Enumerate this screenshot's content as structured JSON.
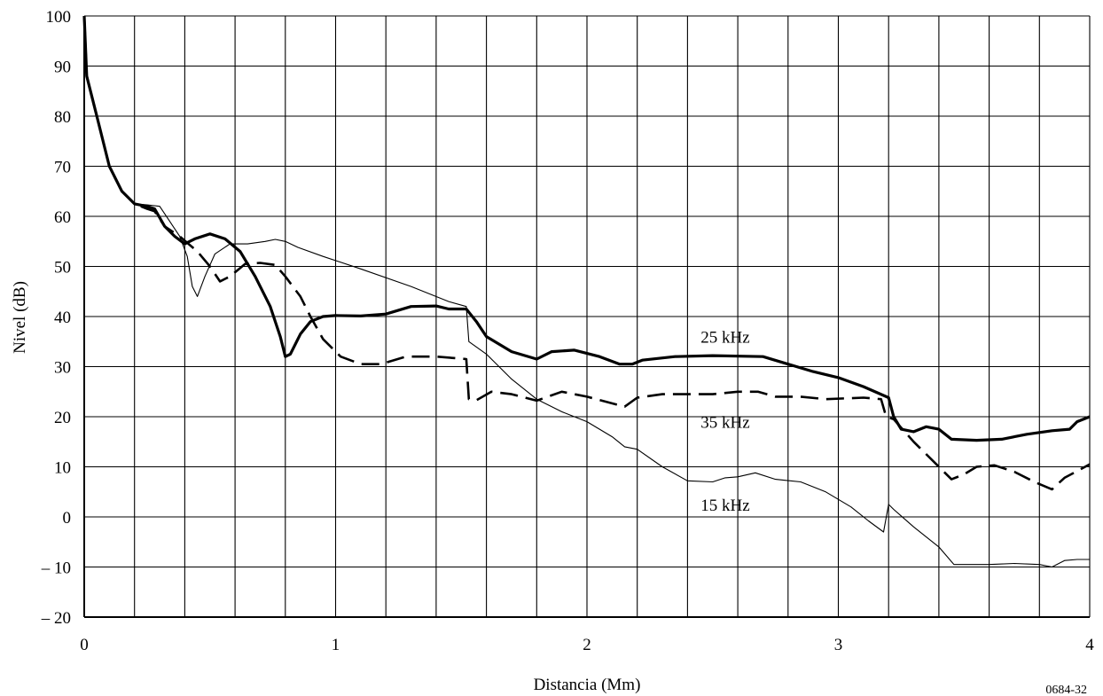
{
  "chart_data": {
    "type": "line",
    "xlabel": "Distancia (Mm)",
    "ylabel": "Nivel (dB)",
    "xlim": [
      0,
      4
    ],
    "ylim": [
      -20,
      100
    ],
    "x_ticks": [
      0,
      0.2,
      0.4,
      0.6,
      0.8,
      1,
      1.2,
      1.4,
      1.6,
      1.8,
      2,
      2.2,
      2.4,
      2.6,
      2.8,
      3,
      3.2,
      3.4,
      3.6,
      3.8,
      4
    ],
    "x_tick_labels": [
      {
        "value": 0,
        "label": "0"
      },
      {
        "value": 1,
        "label": "1"
      },
      {
        "value": 2,
        "label": "2"
      },
      {
        "value": 3,
        "label": "3"
      },
      {
        "value": 4,
        "label": "4"
      }
    ],
    "y_ticks": [
      -20,
      -10,
      0,
      10,
      20,
      30,
      40,
      50,
      60,
      70,
      80,
      90,
      100
    ],
    "y_tick_labels": [
      "– 20",
      "– 10",
      "0",
      "10",
      "20",
      "30",
      "40",
      "50",
      "60",
      "70",
      "80",
      "90",
      "100"
    ],
    "grid": true,
    "figure_code": "0684-32",
    "series": [
      {
        "name": "25 kHz",
        "style": "thick-solid",
        "label_at": [
          2.55,
          36
        ],
        "points": [
          [
            0,
            100
          ],
          [
            0.01,
            88
          ],
          [
            0.05,
            80
          ],
          [
            0.1,
            70
          ],
          [
            0.15,
            65
          ],
          [
            0.2,
            62.5
          ],
          [
            0.25,
            62
          ],
          [
            0.28,
            61.5
          ],
          [
            0.32,
            58
          ],
          [
            0.36,
            56
          ],
          [
            0.4,
            54.5
          ],
          [
            0.44,
            55.5
          ],
          [
            0.5,
            56.5
          ],
          [
            0.56,
            55.5
          ],
          [
            0.62,
            53
          ],
          [
            0.68,
            48
          ],
          [
            0.74,
            42
          ],
          [
            0.78,
            36
          ],
          [
            0.8,
            32
          ],
          [
            0.82,
            32.5
          ],
          [
            0.86,
            36.5
          ],
          [
            0.9,
            39
          ],
          [
            0.95,
            40
          ],
          [
            1.0,
            40.2
          ],
          [
            1.1,
            40.1
          ],
          [
            1.2,
            40.5
          ],
          [
            1.3,
            42
          ],
          [
            1.4,
            42.1
          ],
          [
            1.45,
            41.5
          ],
          [
            1.52,
            41.5
          ],
          [
            1.56,
            39
          ],
          [
            1.6,
            36
          ],
          [
            1.7,
            33
          ],
          [
            1.8,
            31.5
          ],
          [
            1.86,
            33
          ],
          [
            1.95,
            33.3
          ],
          [
            2.05,
            32
          ],
          [
            2.13,
            30.5
          ],
          [
            2.18,
            30.5
          ],
          [
            2.22,
            31.3
          ],
          [
            2.35,
            32
          ],
          [
            2.5,
            32.2
          ],
          [
            2.7,
            32
          ],
          [
            2.8,
            30.5
          ],
          [
            2.9,
            29
          ],
          [
            3.0,
            27.8
          ],
          [
            3.1,
            26
          ],
          [
            3.2,
            23.8
          ],
          [
            3.22,
            20
          ],
          [
            3.25,
            17.5
          ],
          [
            3.3,
            17
          ],
          [
            3.35,
            18
          ],
          [
            3.4,
            17.5
          ],
          [
            3.45,
            15.5
          ],
          [
            3.55,
            15.3
          ],
          [
            3.65,
            15.5
          ],
          [
            3.75,
            16.5
          ],
          [
            3.85,
            17.2
          ],
          [
            3.92,
            17.5
          ],
          [
            3.95,
            19
          ],
          [
            4.0,
            20
          ]
        ]
      },
      {
        "name": "35 kHz",
        "style": "thick-dashed",
        "label_at": [
          2.55,
          19
        ],
        "points": [
          [
            0,
            100
          ],
          [
            0.01,
            88
          ],
          [
            0.05,
            80
          ],
          [
            0.1,
            70
          ],
          [
            0.15,
            65
          ],
          [
            0.2,
            62.5
          ],
          [
            0.25,
            61.5
          ],
          [
            0.28,
            61
          ],
          [
            0.32,
            58
          ],
          [
            0.38,
            56
          ],
          [
            0.45,
            53
          ],
          [
            0.5,
            50
          ],
          [
            0.54,
            47
          ],
          [
            0.58,
            48
          ],
          [
            0.64,
            50.5
          ],
          [
            0.7,
            50.7
          ],
          [
            0.76,
            50.3
          ],
          [
            0.8,
            48
          ],
          [
            0.86,
            44
          ],
          [
            0.9,
            40
          ],
          [
            0.95,
            35.5
          ],
          [
            1.02,
            32
          ],
          [
            1.1,
            30.5
          ],
          [
            1.18,
            30.5
          ],
          [
            1.28,
            32
          ],
          [
            1.4,
            32
          ],
          [
            1.52,
            31.5
          ],
          [
            1.53,
            23.5
          ],
          [
            1.56,
            23.3
          ],
          [
            1.62,
            25
          ],
          [
            1.7,
            24.5
          ],
          [
            1.8,
            23.2
          ],
          [
            1.9,
            25
          ],
          [
            2.0,
            24
          ],
          [
            2.15,
            22
          ],
          [
            2.2,
            23.8
          ],
          [
            2.3,
            24.5
          ],
          [
            2.5,
            24.5
          ],
          [
            2.6,
            25
          ],
          [
            2.68,
            25
          ],
          [
            2.75,
            24
          ],
          [
            2.85,
            24
          ],
          [
            2.95,
            23.5
          ],
          [
            3.1,
            23.8
          ],
          [
            3.17,
            23.5
          ],
          [
            3.19,
            20
          ],
          [
            3.22,
            19.5
          ],
          [
            3.3,
            15
          ],
          [
            3.4,
            10
          ],
          [
            3.45,
            7.5
          ],
          [
            3.5,
            8.5
          ],
          [
            3.55,
            10
          ],
          [
            3.62,
            10.3
          ],
          [
            3.7,
            9
          ],
          [
            3.78,
            7
          ],
          [
            3.85,
            5.5
          ],
          [
            3.9,
            7.8
          ],
          [
            4.0,
            10.5
          ]
        ]
      },
      {
        "name": "15 kHz",
        "style": "thin-solid",
        "label_at": [
          2.55,
          2.5
        ],
        "points": [
          [
            0,
            100
          ],
          [
            0.01,
            88
          ],
          [
            0.05,
            80
          ],
          [
            0.1,
            70
          ],
          [
            0.15,
            65
          ],
          [
            0.2,
            62.5
          ],
          [
            0.25,
            62.3
          ],
          [
            0.3,
            62
          ],
          [
            0.34,
            59
          ],
          [
            0.38,
            56
          ],
          [
            0.41,
            52
          ],
          [
            0.43,
            46
          ],
          [
            0.45,
            44
          ],
          [
            0.48,
            48
          ],
          [
            0.52,
            52.5
          ],
          [
            0.58,
            54.5
          ],
          [
            0.65,
            54.5
          ],
          [
            0.72,
            55
          ],
          [
            0.76,
            55.4
          ],
          [
            0.8,
            55
          ],
          [
            0.85,
            53.8
          ],
          [
            0.95,
            52
          ],
          [
            1.1,
            49.5
          ],
          [
            1.3,
            46
          ],
          [
            1.45,
            43
          ],
          [
            1.52,
            42
          ],
          [
            1.53,
            35
          ],
          [
            1.6,
            32.5
          ],
          [
            1.7,
            27.5
          ],
          [
            1.8,
            23.5
          ],
          [
            1.9,
            21
          ],
          [
            2.0,
            19
          ],
          [
            2.1,
            16
          ],
          [
            2.15,
            14
          ],
          [
            2.2,
            13.5
          ],
          [
            2.3,
            10
          ],
          [
            2.4,
            7.2
          ],
          [
            2.5,
            7
          ],
          [
            2.55,
            7.8
          ],
          [
            2.6,
            8
          ],
          [
            2.67,
            8.8
          ],
          [
            2.75,
            7.5
          ],
          [
            2.85,
            7
          ],
          [
            2.95,
            5
          ],
          [
            3.05,
            2
          ],
          [
            3.12,
            -0.8
          ],
          [
            3.18,
            -3
          ],
          [
            3.2,
            2.5
          ],
          [
            3.22,
            1.5
          ],
          [
            3.3,
            -2
          ],
          [
            3.4,
            -6
          ],
          [
            3.46,
            -9.5
          ],
          [
            3.5,
            -9.5
          ],
          [
            3.6,
            -9.5
          ],
          [
            3.7,
            -9.3
          ],
          [
            3.8,
            -9.5
          ],
          [
            3.85,
            -10
          ],
          [
            3.9,
            -8.7
          ],
          [
            3.95,
            -8.5
          ],
          [
            4.0,
            -8.5
          ]
        ]
      }
    ]
  }
}
